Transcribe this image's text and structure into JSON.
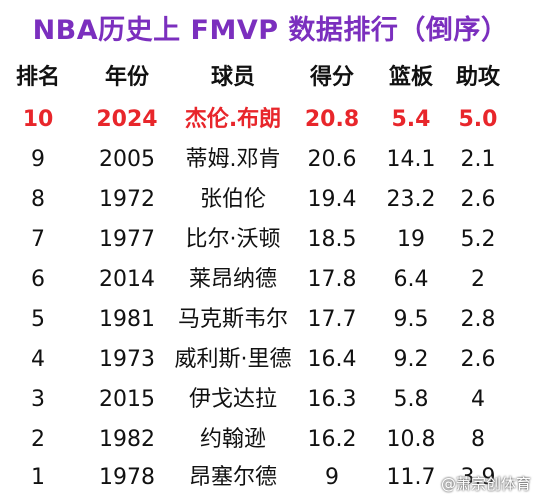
{
  "title": "NBA历史上 FMVP 数据排行（倒序）",
  "headers": {
    "rank": "排名",
    "year": "年份",
    "player": "球员",
    "points": "得分",
    "rebounds": "篮板",
    "assists": "助攻"
  },
  "rows": [
    {
      "rank": "10",
      "year": "2024",
      "player": "杰伦.布朗",
      "points": "20.8",
      "rebounds": "5.4",
      "assists": "5.0"
    },
    {
      "rank": "9",
      "year": "2005",
      "player": "蒂姆.邓肯",
      "points": "20.6",
      "rebounds": "14.1",
      "assists": "2.1"
    },
    {
      "rank": "8",
      "year": "1972",
      "player": "张伯伦",
      "points": "19.4",
      "rebounds": "23.2",
      "assists": "2.6"
    },
    {
      "rank": "7",
      "year": "1977",
      "player": "比尔·沃顿",
      "points": "18.5",
      "rebounds": "19",
      "assists": "5.2"
    },
    {
      "rank": "6",
      "year": "2014",
      "player": "莱昂纳德",
      "points": "17.8",
      "rebounds": "6.4",
      "assists": "2"
    },
    {
      "rank": "5",
      "year": "1981",
      "player": "马克斯韦尔",
      "points": "17.7",
      "rebounds": "9.5",
      "assists": "2.8"
    },
    {
      "rank": "4",
      "year": "1973",
      "player": "威利斯·里德",
      "points": "16.4",
      "rebounds": "9.2",
      "assists": "2.6"
    },
    {
      "rank": "3",
      "year": "2015",
      "player": "伊戈达拉",
      "points": "16.3",
      "rebounds": "5.8",
      "assists": "4"
    },
    {
      "rank": "2",
      "year": "1982",
      "player": "约翰逊",
      "points": "16.2",
      "rebounds": "10.8",
      "assists": "8"
    },
    {
      "rank": "1",
      "year": "1978",
      "player": "昂塞尔德",
      "points": "9",
      "rebounds": "11.7",
      "assists": "3.9"
    }
  ],
  "watermark": "@萧宗创体育",
  "colors": {
    "title": "#7b2fbe",
    "highlight": "#e8262b",
    "text": "#111111"
  }
}
